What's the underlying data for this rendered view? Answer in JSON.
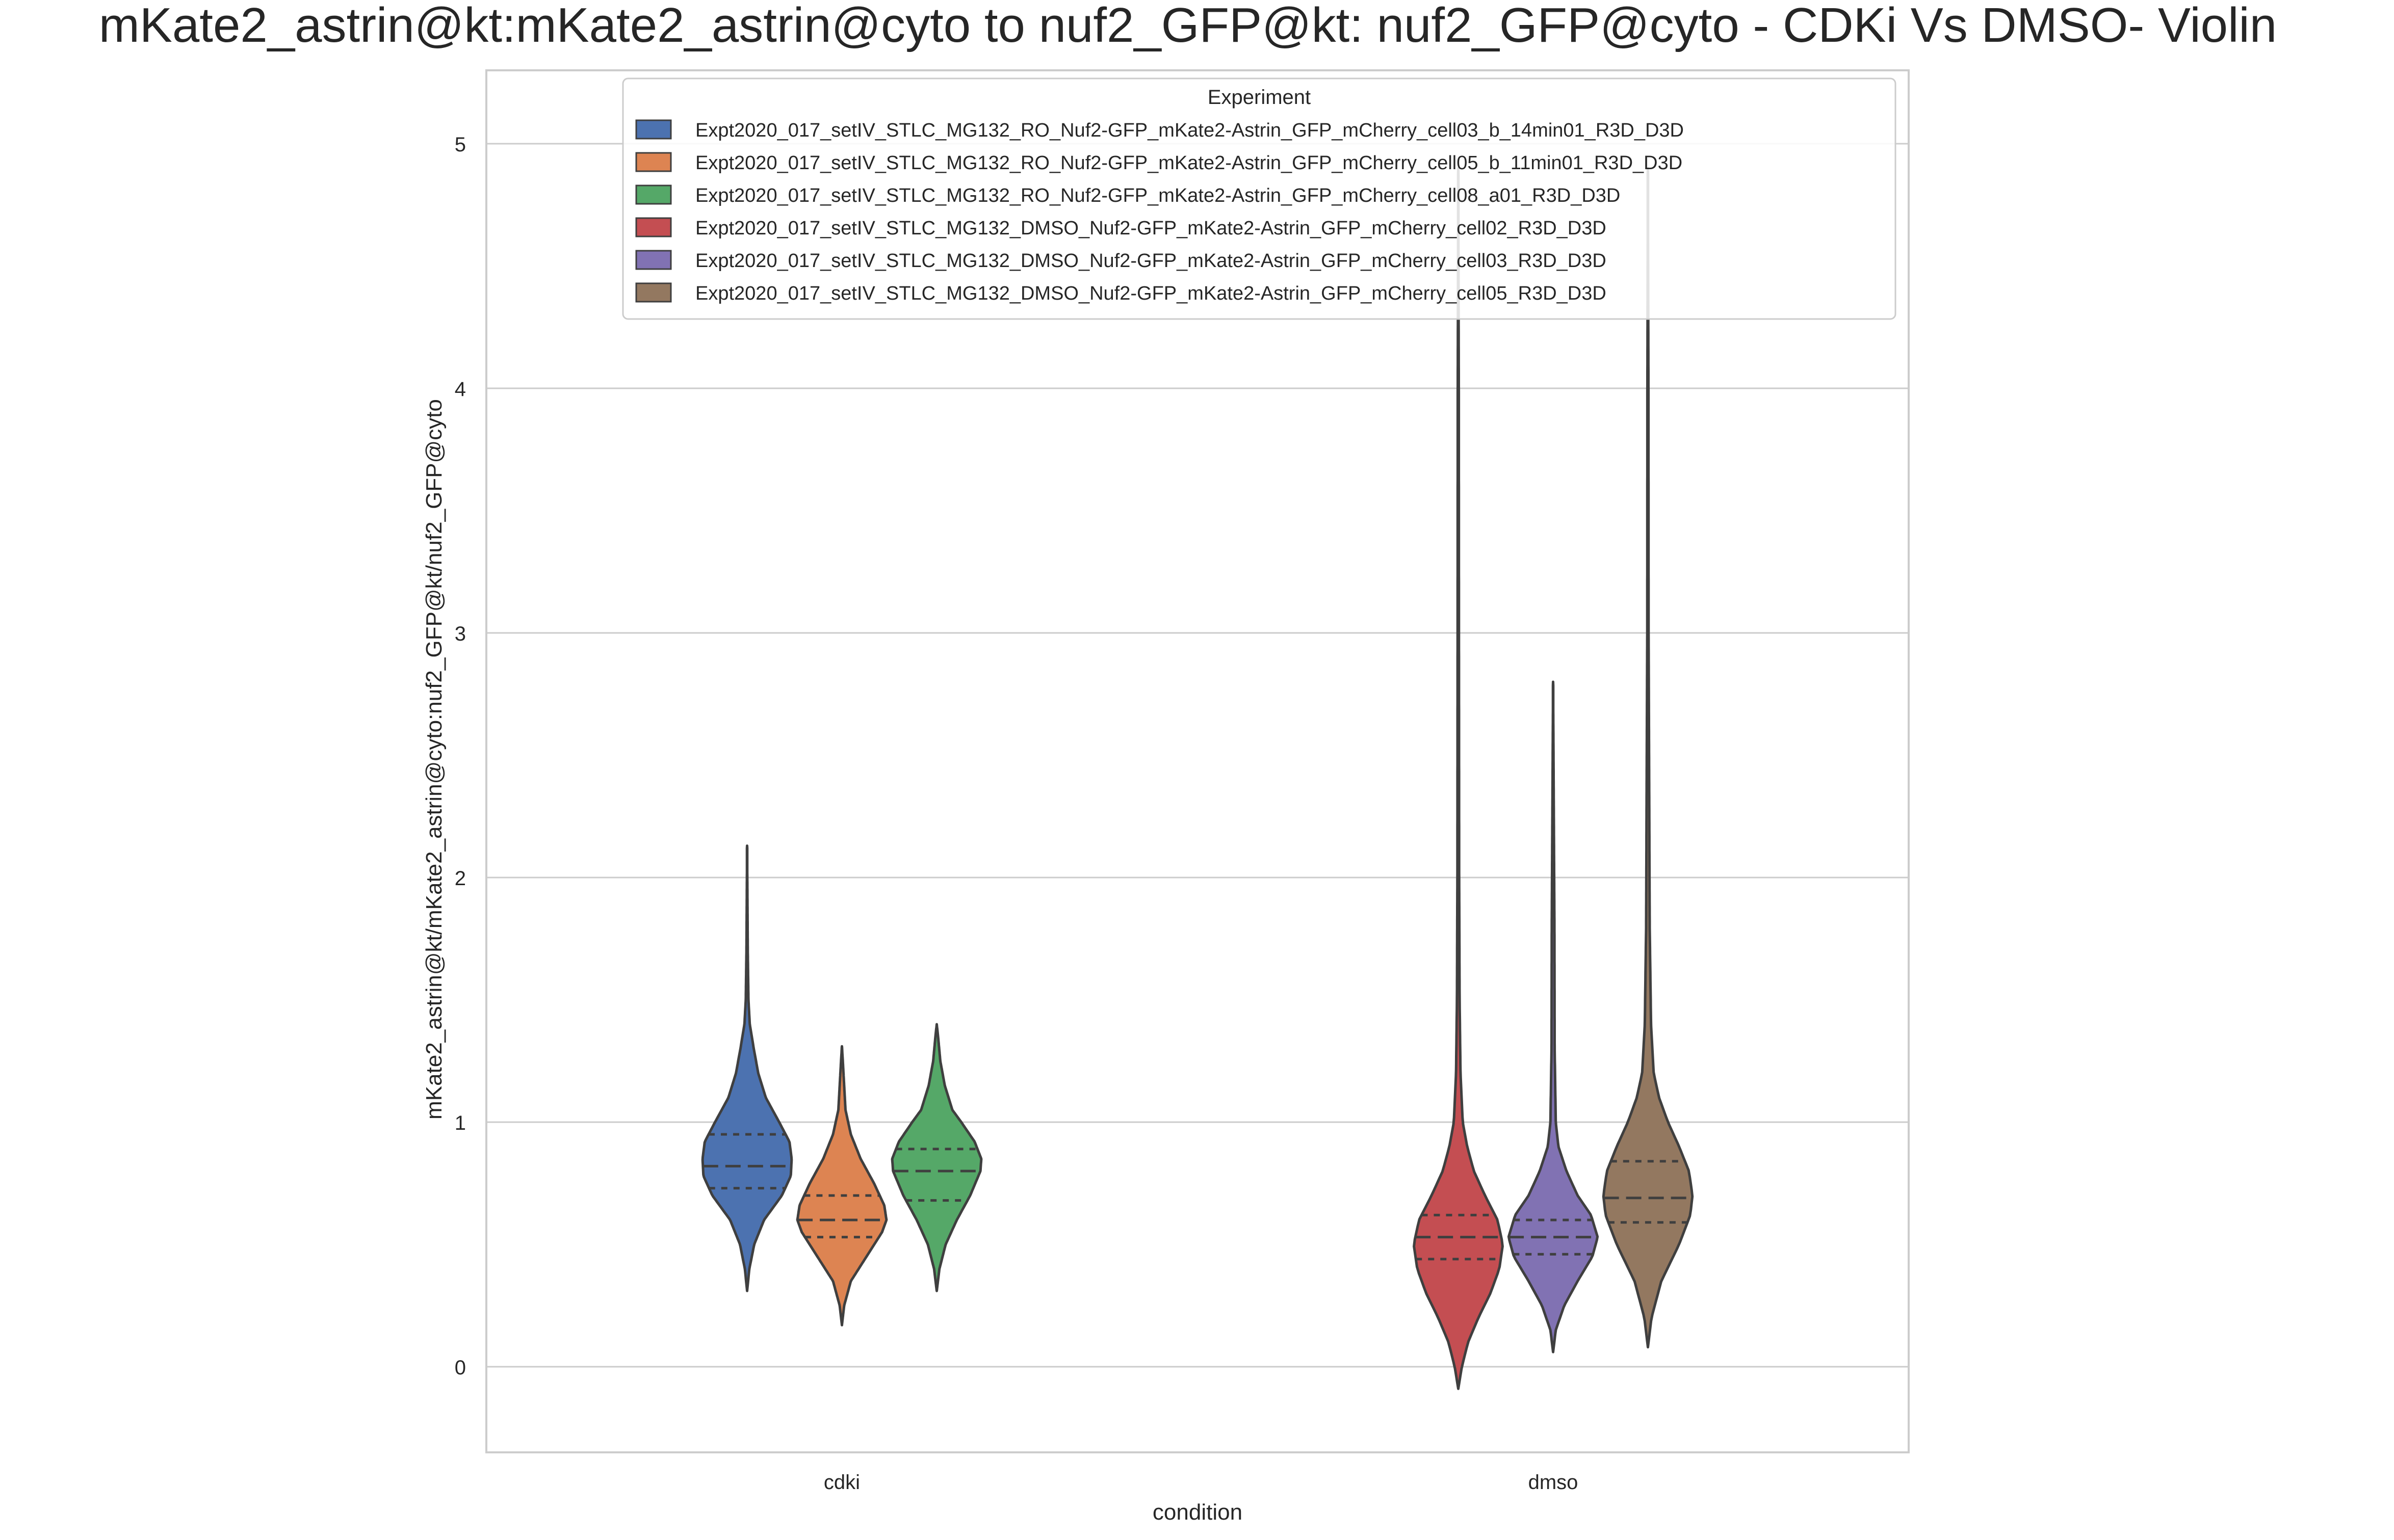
{
  "chart_data": {
    "type": "violin",
    "title": "mKate2_astrin@kt:mKate2_astrin@cyto to nuf2_GFP@kt: nuf2_GFP@cyto - CDKi Vs DMSO- Violin",
    "xlabel": "condition",
    "ylabel": "mKate2_astrin@kt/mKate2_astrin@cyto:nuf2_GFP@kt/nuf2_GFP@cyto",
    "categories": [
      "cdki",
      "dmso"
    ],
    "ylim": [
      -0.35,
      5.3
    ],
    "yticks": [
      "0",
      "1",
      "2",
      "3",
      "4",
      "5"
    ],
    "ytick_values": [
      0,
      1,
      2,
      3,
      4,
      5
    ],
    "grid": "horizontal",
    "inner": "quartile",
    "legend": {
      "title": "Experiment",
      "placement": "top-center"
    },
    "series": [
      {
        "name": "Expt2020_017_setIV_STLC_MG132_RO_Nuf2-GFP_mKate2-Astrin_GFP_mCherry_cell03_b_14min01_R3D_D3D",
        "category": "cdki",
        "color": "#4c72b0",
        "min": 0.31,
        "q1": 0.73,
        "median": 0.82,
        "q3": 0.95,
        "max": 2.13,
        "density": [
          [
            0.31,
            0.0
          ],
          [
            0.4,
            0.05
          ],
          [
            0.5,
            0.16
          ],
          [
            0.6,
            0.38
          ],
          [
            0.7,
            0.78
          ],
          [
            0.78,
            0.98
          ],
          [
            0.85,
            1.0
          ],
          [
            0.92,
            0.95
          ],
          [
            1.0,
            0.72
          ],
          [
            1.1,
            0.42
          ],
          [
            1.2,
            0.25
          ],
          [
            1.3,
            0.15
          ],
          [
            1.4,
            0.06
          ],
          [
            1.5,
            0.03
          ],
          [
            1.7,
            0.015
          ],
          [
            1.9,
            0.008
          ],
          [
            2.13,
            0.0
          ]
        ]
      },
      {
        "name": "Expt2020_017_setIV_STLC_MG132_RO_Nuf2-GFP_mKate2-Astrin_GFP_mCherry_cell05_b_11min01_R3D_D3D",
        "category": "cdki",
        "color": "#dd8452",
        "min": 0.17,
        "q1": 0.53,
        "median": 0.6,
        "q3": 0.7,
        "max": 1.31,
        "density": [
          [
            0.17,
            0.0
          ],
          [
            0.25,
            0.05
          ],
          [
            0.35,
            0.2
          ],
          [
            0.45,
            0.55
          ],
          [
            0.55,
            0.9
          ],
          [
            0.6,
            1.0
          ],
          [
            0.66,
            0.95
          ],
          [
            0.75,
            0.72
          ],
          [
            0.85,
            0.42
          ],
          [
            0.95,
            0.2
          ],
          [
            1.05,
            0.08
          ],
          [
            1.15,
            0.05
          ],
          [
            1.25,
            0.02
          ],
          [
            1.31,
            0.0
          ]
        ]
      },
      {
        "name": "Expt2020_017_setIV_STLC_MG132_RO_Nuf2-GFP_mKate2-Astrin_GFP_mCherry_cell08_a01_R3D_D3D",
        "category": "cdki",
        "color": "#55a868",
        "min": 0.31,
        "q1": 0.68,
        "median": 0.8,
        "q3": 0.89,
        "max": 1.4,
        "density": [
          [
            0.31,
            0.0
          ],
          [
            0.4,
            0.06
          ],
          [
            0.5,
            0.2
          ],
          [
            0.6,
            0.45
          ],
          [
            0.7,
            0.75
          ],
          [
            0.8,
            0.98
          ],
          [
            0.85,
            1.0
          ],
          [
            0.92,
            0.85
          ],
          [
            1.0,
            0.55
          ],
          [
            1.05,
            0.35
          ],
          [
            1.15,
            0.18
          ],
          [
            1.25,
            0.08
          ],
          [
            1.35,
            0.03
          ],
          [
            1.4,
            0.0
          ]
        ]
      },
      {
        "name": "Expt2020_017_setIV_STLC_MG132_DMSO_Nuf2-GFP_mKate2-Astrin_GFP_mCherry_cell02_R3D_D3D",
        "category": "dmso",
        "color": "#c44e52",
        "min": -0.09,
        "q1": 0.44,
        "median": 0.53,
        "q3": 0.62,
        "max": 4.9,
        "density": [
          [
            -0.09,
            0.0
          ],
          [
            0.0,
            0.08
          ],
          [
            0.1,
            0.22
          ],
          [
            0.2,
            0.45
          ],
          [
            0.3,
            0.72
          ],
          [
            0.4,
            0.92
          ],
          [
            0.5,
            1.0
          ],
          [
            0.6,
            0.88
          ],
          [
            0.7,
            0.6
          ],
          [
            0.8,
            0.35
          ],
          [
            0.9,
            0.2
          ],
          [
            1.0,
            0.1
          ],
          [
            1.2,
            0.05
          ],
          [
            1.5,
            0.03
          ],
          [
            2.0,
            0.02
          ],
          [
            3.0,
            0.015
          ],
          [
            4.0,
            0.012
          ],
          [
            4.9,
            0.0
          ]
        ]
      },
      {
        "name": "Expt2020_017_setIV_STLC_MG132_DMSO_Nuf2-GFP_mKate2-Astrin_GFP_mCherry_cell03_R3D_D3D",
        "category": "dmso",
        "color": "#8172b3",
        "min": 0.06,
        "q1": 0.46,
        "median": 0.53,
        "q3": 0.6,
        "max": 2.8,
        "density": [
          [
            0.06,
            0.0
          ],
          [
            0.15,
            0.06
          ],
          [
            0.25,
            0.25
          ],
          [
            0.35,
            0.55
          ],
          [
            0.45,
            0.88
          ],
          [
            0.53,
            1.0
          ],
          [
            0.62,
            0.85
          ],
          [
            0.7,
            0.55
          ],
          [
            0.8,
            0.3
          ],
          [
            0.9,
            0.12
          ],
          [
            1.0,
            0.06
          ],
          [
            1.3,
            0.035
          ],
          [
            1.8,
            0.03
          ],
          [
            2.3,
            0.015
          ],
          [
            2.8,
            0.0
          ]
        ]
      },
      {
        "name": "Expt2020_017_setIV_STLC_MG132_DMSO_Nuf2-GFP_mKate2-Astrin_GFP_mCherry_cell05_R3D_D3D",
        "category": "dmso",
        "color": "#937860",
        "min": 0.08,
        "q1": 0.59,
        "median": 0.69,
        "q3": 0.84,
        "max": 4.9,
        "density": [
          [
            0.08,
            0.0
          ],
          [
            0.2,
            0.08
          ],
          [
            0.35,
            0.3
          ],
          [
            0.5,
            0.7
          ],
          [
            0.62,
            0.95
          ],
          [
            0.7,
            1.0
          ],
          [
            0.8,
            0.92
          ],
          [
            0.9,
            0.7
          ],
          [
            1.0,
            0.45
          ],
          [
            1.1,
            0.25
          ],
          [
            1.2,
            0.13
          ],
          [
            1.4,
            0.07
          ],
          [
            1.8,
            0.04
          ],
          [
            2.3,
            0.03
          ],
          [
            3.0,
            0.015
          ],
          [
            4.0,
            0.012
          ],
          [
            4.9,
            0.0
          ]
        ]
      }
    ]
  }
}
